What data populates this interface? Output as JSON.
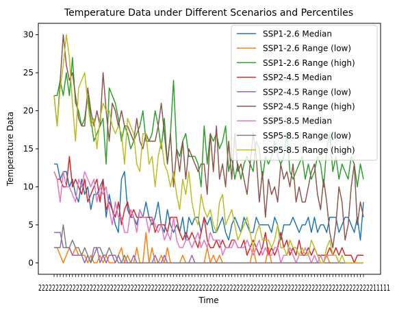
{
  "chart_data": {
    "type": "line",
    "title": "Temperature Data under Different Scenarios and Percentiles",
    "xlabel": "Time",
    "ylabel": "Temperature Data",
    "ylim": [
      -1.5,
      31.5
    ],
    "yticks": [
      0,
      5,
      10,
      15,
      20,
      25,
      30
    ],
    "x_tick_text": "2222222222222222222222222222222222222222222222222222222222222222222222222222222222222222222222222211111",
    "legend_position": "top-right",
    "grid": false,
    "series": [
      {
        "name": "SSP1-2.6 Median",
        "color": "#1f77b4",
        "values": [
          13,
          13,
          11,
          12,
          12,
          10,
          11,
          9,
          8,
          11,
          9,
          10,
          7,
          9,
          9,
          10,
          11,
          6,
          9,
          7,
          5,
          4,
          11,
          12,
          7,
          6,
          6,
          5,
          7,
          6,
          8,
          6,
          5,
          6,
          8,
          5,
          4,
          7,
          5,
          4,
          5,
          4,
          6,
          3,
          6,
          5,
          6,
          6,
          4,
          6,
          5,
          6,
          4,
          4,
          5,
          6,
          4,
          3,
          5,
          6,
          5,
          4,
          6,
          5,
          4,
          4,
          6,
          5,
          5,
          5,
          5,
          4,
          6,
          5,
          3,
          5,
          5,
          5,
          6,
          5,
          4,
          5,
          5,
          6,
          4,
          6,
          4,
          5,
          5,
          4,
          6,
          6,
          6,
          4,
          5,
          6,
          6,
          5,
          4,
          6,
          3,
          8
        ]
      },
      {
        "name": "SSP1-2.6 Range (low)",
        "color": "#ff7f0e",
        "values": [
          2,
          2,
          1,
          0,
          1,
          2,
          1,
          2,
          1,
          1,
          1,
          0,
          1,
          0,
          0,
          1,
          0,
          1,
          0,
          0,
          0,
          1,
          2,
          0,
          1,
          0,
          0,
          2,
          0,
          0,
          4,
          0,
          2,
          0,
          0,
          1,
          0,
          2,
          0,
          0,
          0,
          0,
          1,
          0,
          0,
          0,
          0,
          0,
          0,
          0,
          2,
          0,
          1,
          0,
          1,
          0,
          0,
          0,
          0,
          0,
          0,
          0,
          0,
          0,
          0,
          2,
          0,
          0,
          0,
          0,
          2,
          0,
          0,
          0,
          0,
          0,
          0,
          0,
          0,
          0,
          0,
          0,
          0,
          0,
          0,
          0,
          0,
          0,
          0,
          1,
          0,
          0,
          0,
          0,
          0,
          0,
          0,
          0,
          0,
          0,
          0,
          0
        ]
      },
      {
        "name": "SSP1-2.6 Range (high)",
        "color": "#2ca02c",
        "values": [
          22,
          22,
          24,
          22,
          25,
          22,
          27,
          21,
          20,
          18,
          19,
          22,
          19,
          16,
          17,
          18,
          19,
          13,
          23,
          22,
          21,
          19,
          16,
          18,
          17,
          15,
          16,
          17,
          18,
          20,
          16,
          16,
          17,
          20,
          18,
          15,
          19,
          13,
          17,
          24,
          15,
          14,
          16,
          17,
          14,
          14,
          14,
          13,
          10,
          18,
          13,
          17,
          16,
          17,
          15,
          16,
          18,
          12,
          14,
          11,
          13,
          11,
          13,
          14,
          13,
          12,
          16,
          15,
          11,
          14,
          13,
          14,
          16,
          14,
          13,
          14,
          17,
          12,
          11,
          12,
          13,
          14,
          11,
          13,
          11,
          12,
          14,
          13,
          10,
          15,
          17,
          12,
          14,
          11,
          13,
          12,
          11,
          14,
          13,
          10,
          13,
          11
        ]
      },
      {
        "name": "SSP2-4.5 Median",
        "color": "#d62728",
        "values": [
          12,
          11,
          11,
          10,
          10,
          14,
          10,
          11,
          10,
          9,
          11,
          8,
          9,
          10,
          11,
          8,
          11,
          7,
          8,
          7,
          6,
          8,
          5,
          7,
          8,
          6,
          7,
          6,
          6,
          6,
          6,
          6,
          6,
          4,
          5,
          5,
          5,
          4,
          6,
          6,
          6,
          4,
          3,
          4,
          3,
          4,
          3,
          2,
          4,
          6,
          3,
          2,
          2,
          3,
          2,
          3,
          2,
          2,
          3,
          3,
          2,
          2,
          3,
          1,
          2,
          3,
          2,
          1,
          2,
          4,
          1,
          2,
          1,
          2,
          4,
          2,
          3,
          1,
          2,
          1,
          3,
          1,
          1,
          2,
          1,
          2,
          1,
          1,
          1,
          1,
          2,
          1,
          2,
          1,
          2,
          1,
          1,
          1,
          0,
          1,
          1,
          1
        ]
      },
      {
        "name": "SSP2-4.5 Range (low)",
        "color": "#9467bd",
        "values": [
          4,
          4,
          4,
          2,
          2,
          2,
          1,
          1,
          1,
          1,
          0,
          1,
          0,
          2,
          2,
          0,
          1,
          0,
          1,
          1,
          0,
          1,
          0,
          0,
          0,
          0,
          1,
          0,
          0,
          0,
          0,
          0,
          0,
          1,
          0,
          0,
          1,
          0,
          0,
          0,
          0,
          0,
          0,
          0,
          0,
          1,
          0,
          0,
          0,
          0,
          0,
          0,
          0,
          0,
          0,
          0,
          0,
          0,
          0,
          0,
          0,
          0,
          0,
          0,
          0,
          0,
          0,
          0,
          0,
          0,
          0,
          0,
          0,
          0,
          0,
          0,
          0,
          0,
          0,
          0,
          0,
          0,
          0,
          0,
          0,
          0,
          0,
          0,
          0,
          0,
          0,
          0,
          0,
          0,
          0,
          0,
          0,
          0,
          0,
          0,
          0,
          0
        ]
      },
      {
        "name": "SSP2-4.5 Range (high)",
        "color": "#8c564b",
        "values": [
          22,
          18,
          24,
          30,
          26,
          24,
          25,
          22,
          19,
          18,
          18,
          23,
          20,
          18,
          20,
          18,
          25,
          20,
          16,
          21,
          20,
          18,
          20,
          18,
          18,
          17,
          16,
          19,
          16,
          15,
          17,
          16,
          16,
          16,
          18,
          21,
          17,
          13,
          17,
          10,
          15,
          12,
          16,
          11,
          15,
          14,
          13,
          12,
          13,
          13,
          9,
          17,
          12,
          18,
          11,
          13,
          10,
          16,
          11,
          17,
          12,
          13,
          11,
          9,
          13,
          17,
          14,
          8,
          12,
          6,
          11,
          9,
          10,
          8,
          13,
          11,
          12,
          10,
          13,
          8,
          10,
          8,
          8,
          10,
          12,
          13,
          9,
          7,
          11,
          8,
          4,
          2,
          5,
          10,
          8,
          3,
          5,
          10,
          13,
          5,
          8,
          6
        ]
      },
      {
        "name": "SSP5-8.5 Median",
        "color": "#e377c2",
        "values": [
          12,
          11,
          8,
          12,
          10,
          10,
          9,
          8,
          11,
          10,
          12,
          11,
          10,
          11,
          8,
          10,
          9,
          10,
          7,
          5,
          8,
          6,
          6,
          4,
          4,
          7,
          6,
          4,
          7,
          6,
          6,
          4,
          6,
          5,
          4,
          5,
          3,
          4,
          3,
          6,
          3,
          2,
          2,
          3,
          3,
          2,
          3,
          4,
          2,
          3,
          2,
          4,
          3,
          3,
          3,
          1,
          2,
          2,
          2,
          3,
          2,
          2,
          2,
          3,
          2,
          1,
          2,
          3,
          1,
          2,
          1,
          1,
          2,
          2,
          0,
          1,
          1,
          2,
          1,
          0,
          1,
          1,
          2,
          1,
          0,
          1,
          0,
          1,
          0,
          1,
          1,
          1,
          1,
          0,
          0,
          0,
          0,
          0,
          0,
          0,
          0,
          0
        ]
      },
      {
        "name": "SSP5-8.5 Median",
        "color": "#7f7f7f",
        "legend_label": "SSP5-8.5 Range (low)",
        "values": [
          2,
          2,
          2,
          5,
          2,
          2,
          3,
          2,
          2,
          1,
          2,
          1,
          0,
          1,
          2,
          2,
          1,
          1,
          2,
          1,
          1,
          0,
          0,
          1,
          0,
          0,
          0,
          0,
          0,
          0,
          0,
          0,
          0,
          0,
          0,
          0,
          0,
          0,
          0,
          0,
          0,
          0,
          0,
          0,
          0,
          0,
          0,
          0,
          0,
          0,
          0,
          0,
          0,
          0,
          0,
          0,
          0,
          0,
          0,
          0,
          0,
          0,
          0,
          0,
          0,
          0,
          0,
          0,
          0,
          0,
          0,
          0,
          0,
          0,
          0,
          0,
          0,
          0,
          0,
          0,
          0,
          0,
          0,
          0,
          0,
          0,
          0,
          0,
          0,
          0,
          0,
          0,
          0,
          0,
          0,
          0,
          0,
          0,
          0,
          0,
          0,
          0
        ]
      },
      {
        "name": "SSP5-8.5 Range (high)",
        "color": "#bcbd22",
        "legend_label": "SSP5-8.5 Range (high)",
        "values": [
          22,
          18,
          23,
          26,
          30,
          27,
          21,
          16,
          23,
          24,
          25,
          21,
          18,
          19,
          15,
          19,
          21,
          20,
          20,
          18,
          17,
          18,
          17,
          13,
          19,
          18,
          17,
          13,
          12,
          17,
          17,
          13,
          14,
          10,
          14,
          16,
          13,
          12,
          10,
          12,
          9,
          7,
          11,
          9,
          12,
          8,
          6,
          5,
          9,
          7,
          6,
          7,
          5,
          4,
          8,
          9,
          5,
          6,
          7,
          5,
          3,
          4,
          5,
          6,
          4,
          2,
          4,
          5,
          3,
          3,
          3,
          2,
          3,
          5,
          2,
          2,
          1,
          3,
          2,
          2,
          1,
          2,
          1,
          1,
          3,
          2,
          1,
          0,
          0,
          2,
          3,
          1,
          1,
          0,
          1,
          0,
          0,
          0,
          0,
          0,
          0,
          0
        ]
      }
    ]
  }
}
